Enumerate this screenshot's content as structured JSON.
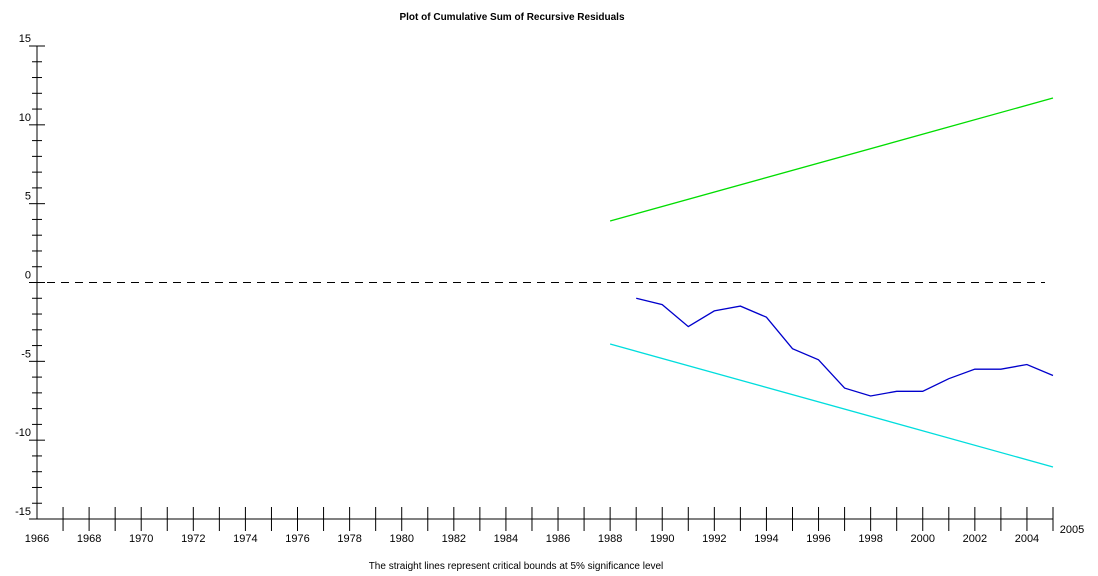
{
  "chart_data": {
    "type": "line",
    "title": "Plot of Cumulative Sum of Recursive Residuals",
    "caption": "The straight lines represent critical bounds at 5% significance level",
    "xlabel": "",
    "ylabel": "",
    "xlim": [
      1966,
      2005
    ],
    "ylim": [
      -15,
      15
    ],
    "x_tick_labels": [
      1966,
      1968,
      1970,
      1972,
      1974,
      1976,
      1978,
      1980,
      1982,
      1984,
      1986,
      1988,
      1990,
      1992,
      1994,
      1996,
      1998,
      2000,
      2002,
      2004,
      2005
    ],
    "y_tick_labels": [
      15,
      10,
      5,
      0,
      -5,
      -10,
      -15
    ],
    "grid": false,
    "zero_line": {
      "y": 0,
      "style": "dashed",
      "color": "#000000"
    },
    "series": [
      {
        "role": "cusum",
        "color": "#0000cc",
        "x": [
          1989,
          1990,
          1991,
          1992,
          1993,
          1994,
          1995,
          1996,
          1997,
          1998,
          1999,
          2000,
          2001,
          2002,
          2003,
          2004,
          2005
        ],
        "y": [
          -1.0,
          -1.4,
          -2.8,
          -1.8,
          -1.5,
          -2.2,
          -4.2,
          -4.9,
          -6.7,
          -7.2,
          -6.9,
          -6.9,
          -6.1,
          -5.5,
          -5.5,
          -5.2,
          -5.9
        ]
      },
      {
        "role": "upper-bound",
        "color": "#00dd00",
        "x": [
          1988,
          2005
        ],
        "y": [
          3.9,
          11.7
        ]
      },
      {
        "role": "lower-bound",
        "color": "#00dddd",
        "x": [
          1988,
          2005
        ],
        "y": [
          -3.9,
          -11.7
        ]
      }
    ]
  }
}
